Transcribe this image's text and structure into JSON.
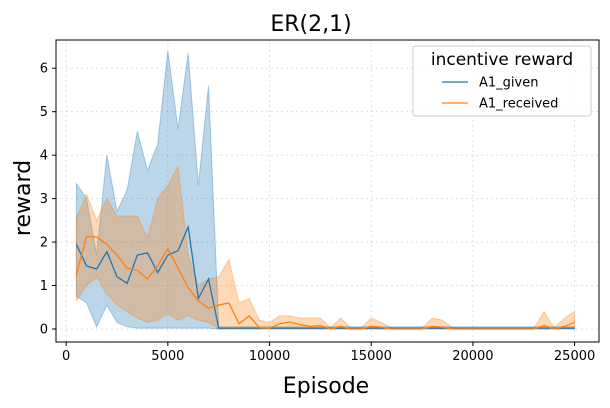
{
  "chart_data": {
    "type": "line",
    "title": "ER(2,1)",
    "xlabel": "Episode",
    "ylabel": "reward",
    "xlim": [
      -500,
      26200
    ],
    "ylim": [
      -0.3,
      6.65
    ],
    "xticks": [
      0,
      5000,
      10000,
      15000,
      20000,
      25000
    ],
    "yticks": [
      0,
      1,
      2,
      3,
      4,
      5,
      6
    ],
    "grid": true,
    "legend": {
      "title": "incentive reward",
      "position": "top-right"
    },
    "x": [
      500,
      1000,
      1500,
      2000,
      2500,
      3000,
      3500,
      4000,
      4500,
      5000,
      5500,
      6000,
      6500,
      7000,
      7500,
      8000,
      8500,
      9000,
      9500,
      10000,
      10500,
      11000,
      11500,
      12000,
      12500,
      13000,
      13500,
      14000,
      14500,
      15000,
      15500,
      16000,
      16500,
      17000,
      17500,
      18000,
      18500,
      19000,
      19500,
      20000,
      20500,
      21000,
      21500,
      22000,
      22500,
      23000,
      23500,
      24000,
      24500,
      25000
    ],
    "series": [
      {
        "name": "A1_given",
        "color": "#1f77b4",
        "values": [
          1.95,
          1.45,
          1.38,
          1.78,
          1.2,
          1.05,
          1.7,
          1.75,
          1.3,
          1.7,
          1.8,
          2.35,
          0.7,
          1.15,
          0.02,
          0.02,
          0.02,
          0.02,
          0.02,
          0.02,
          0.02,
          0.02,
          0.02,
          0.02,
          0.02,
          0.02,
          0.02,
          0.02,
          0.02,
          0.02,
          0.02,
          0.02,
          0.02,
          0.02,
          0.02,
          0.02,
          0.02,
          0.02,
          0.02,
          0.02,
          0.02,
          0.02,
          0.02,
          0.02,
          0.02,
          0.02,
          0.02,
          0.02,
          0.02,
          0.02
        ],
        "lower": [
          0.75,
          0.6,
          0.05,
          0.55,
          0.15,
          0.05,
          0.02,
          0.02,
          0.02,
          0.02,
          0.02,
          0.02,
          0.02,
          0.02,
          0.0,
          0.0,
          0.0,
          0.0,
          0.0,
          0.0,
          0.0,
          0.0,
          0.0,
          0.0,
          0.0,
          0.0,
          0.0,
          0.0,
          0.0,
          0.0,
          0.0,
          0.0,
          0.0,
          0.0,
          0.0,
          0.0,
          0.0,
          0.0,
          0.0,
          0.0,
          0.0,
          0.0,
          0.0,
          0.0,
          0.0,
          0.0,
          0.0,
          0.0,
          0.0,
          0.0
        ],
        "upper": [
          3.35,
          3.0,
          1.7,
          4.0,
          2.7,
          3.2,
          4.55,
          3.65,
          4.25,
          6.4,
          4.6,
          6.35,
          3.3,
          5.6,
          0.05,
          0.05,
          0.05,
          0.05,
          0.05,
          0.05,
          0.05,
          0.05,
          0.05,
          0.05,
          0.05,
          0.05,
          0.05,
          0.05,
          0.05,
          0.05,
          0.05,
          0.05,
          0.05,
          0.05,
          0.05,
          0.05,
          0.05,
          0.05,
          0.05,
          0.05,
          0.05,
          0.05,
          0.05,
          0.05,
          0.05,
          0.05,
          0.05,
          0.05,
          0.05,
          0.05
        ]
      },
      {
        "name": "A1_received",
        "color": "#ff7f0e",
        "values": [
          1.25,
          2.12,
          2.12,
          1.95,
          1.7,
          1.4,
          1.35,
          1.15,
          1.45,
          1.85,
          1.4,
          0.95,
          0.65,
          0.48,
          0.55,
          0.6,
          0.12,
          0.3,
          0.03,
          0.02,
          0.12,
          0.16,
          0.1,
          0.06,
          0.08,
          0.0,
          0.06,
          0.0,
          0.0,
          0.06,
          0.04,
          0.0,
          0.0,
          0.0,
          0.0,
          0.06,
          0.04,
          0.0,
          0.0,
          0.0,
          0.0,
          0.0,
          0.0,
          0.0,
          0.0,
          0.0,
          0.08,
          0.0,
          0.06,
          0.15
        ],
        "lower": [
          0.65,
          1.0,
          1.2,
          0.8,
          0.55,
          0.4,
          0.25,
          0.15,
          0.2,
          0.35,
          0.2,
          0.3,
          0.2,
          0.15,
          0.0,
          0.0,
          0.0,
          0.0,
          0.0,
          0.0,
          0.0,
          0.0,
          0.0,
          0.0,
          0.0,
          0.0,
          0.0,
          0.0,
          0.0,
          0.0,
          0.0,
          0.0,
          0.0,
          0.0,
          0.0,
          0.0,
          0.0,
          0.0,
          0.0,
          0.0,
          0.0,
          0.0,
          0.0,
          0.0,
          0.0,
          0.0,
          0.0,
          0.0,
          0.0,
          0.0
        ],
        "upper": [
          2.55,
          3.1,
          2.5,
          3.0,
          2.6,
          2.6,
          2.6,
          2.1,
          3.0,
          3.3,
          3.75,
          1.7,
          1.0,
          1.15,
          1.2,
          1.6,
          0.6,
          0.7,
          0.2,
          0.15,
          0.3,
          0.3,
          0.25,
          0.25,
          0.25,
          0.02,
          0.25,
          0.02,
          0.02,
          0.25,
          0.15,
          0.02,
          0.02,
          0.02,
          0.02,
          0.25,
          0.2,
          0.02,
          0.02,
          0.02,
          0.02,
          0.02,
          0.02,
          0.02,
          0.02,
          0.02,
          0.4,
          0.02,
          0.25,
          0.4
        ]
      }
    ]
  }
}
